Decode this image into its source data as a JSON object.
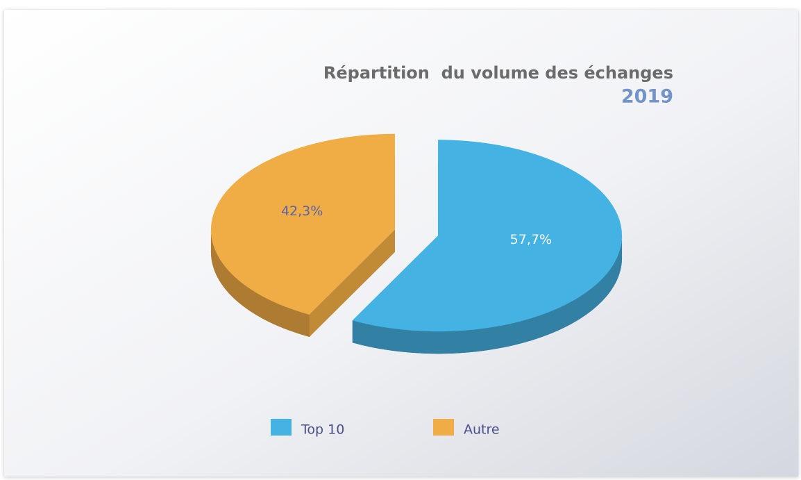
{
  "chart_data": {
    "type": "pie3d",
    "title": "Répartition  du volume des échanges",
    "subtitle": "2019",
    "categories": [
      "Top 10",
      "Autre"
    ],
    "values": [
      57.7,
      42.3
    ],
    "value_labels": [
      "57,7%",
      "42,3%"
    ],
    "colors": [
      "#45b2e4",
      "#f0ac45"
    ],
    "legend": "bottom"
  }
}
